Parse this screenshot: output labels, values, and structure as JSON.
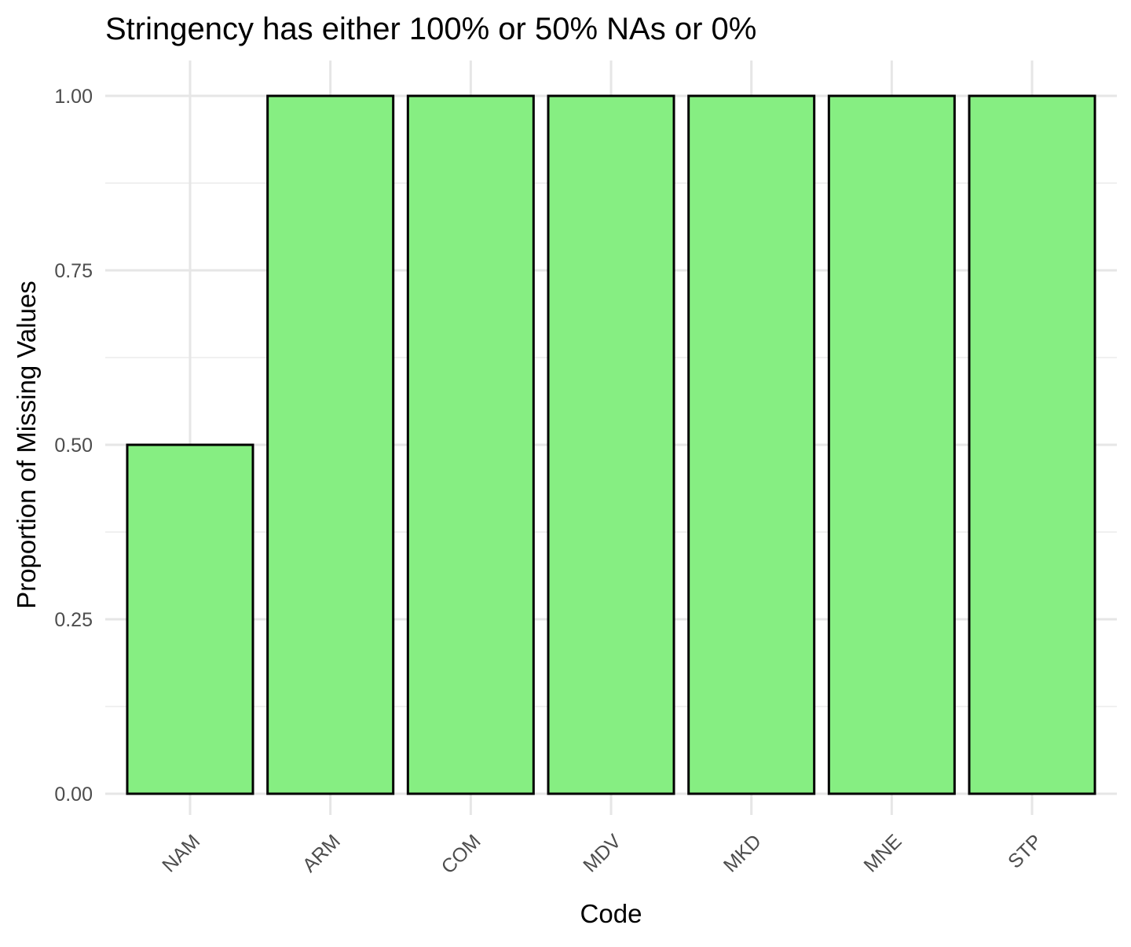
{
  "chart_data": {
    "type": "bar",
    "title": "Stringency has either 100% or 50% NAs or 0%",
    "xlabel": "Code",
    "ylabel": "Proportion of Missing Values",
    "categories": [
      "NAM",
      "ARM",
      "COM",
      "MDV",
      "MKD",
      "MNE",
      "STP"
    ],
    "values": [
      0.5,
      1.0,
      1.0,
      1.0,
      1.0,
      1.0,
      1.0
    ],
    "ylim": [
      0,
      1
    ],
    "yticks": [
      "0.00",
      "0.25",
      "0.50",
      "0.75",
      "1.00"
    ],
    "grid": true,
    "legend": "none",
    "bar_color": "#86EE82",
    "bar_outline_color": "#000000"
  }
}
